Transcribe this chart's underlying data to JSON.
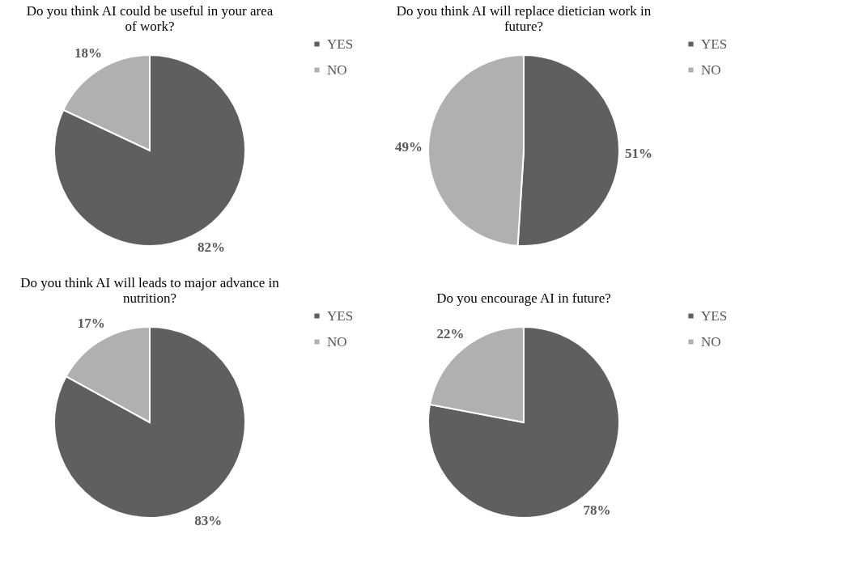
{
  "chart_data": [
    {
      "type": "pie",
      "title": "Do you think AI could be useful in your area of work?",
      "categories": [
        "YES",
        "NO"
      ],
      "values": [
        82,
        18
      ],
      "colors": [
        "#5f5f5f",
        "#b0b0b0"
      ],
      "value_labels": [
        "82%",
        "18%"
      ],
      "legend": "right"
    },
    {
      "type": "pie",
      "title": "Do you think AI will replace dietician work in future?",
      "categories": [
        "YES",
        "NO"
      ],
      "values": [
        51,
        49
      ],
      "colors": [
        "#5f5f5f",
        "#b0b0b0"
      ],
      "value_labels": [
        "51%",
        "49%"
      ],
      "legend": "right"
    },
    {
      "type": "pie",
      "title": "Do you think AI will leads to major advance in nutrition?",
      "categories": [
        "YES",
        "NO"
      ],
      "values": [
        83,
        17
      ],
      "colors": [
        "#5f5f5f",
        "#b0b0b0"
      ],
      "value_labels": [
        "83%",
        "17%"
      ],
      "legend": "right"
    },
    {
      "type": "pie",
      "title": "Do you encourage AI in future?",
      "categories": [
        "YES",
        "NO"
      ],
      "values": [
        78,
        22
      ],
      "colors": [
        "#5f5f5f",
        "#b0b0b0"
      ],
      "value_labels": [
        "78%",
        "22%"
      ],
      "legend": "right"
    }
  ]
}
